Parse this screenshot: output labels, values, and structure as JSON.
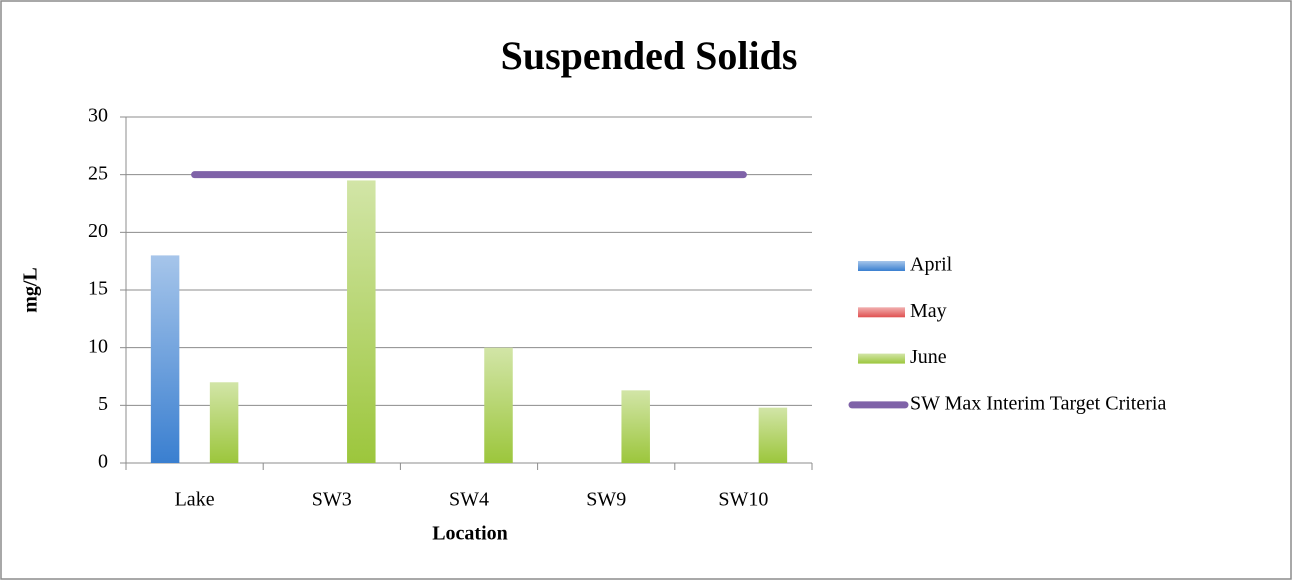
{
  "chart_data": {
    "type": "bar",
    "title": "Suspended Solids",
    "x_label": "Location",
    "y_label": "mg/L",
    "categories": [
      "Lake",
      "SW3",
      "SW4",
      "SW9",
      "SW10"
    ],
    "series": [
      {
        "name": "April",
        "color": "#3a7fd0",
        "values": [
          18,
          null,
          null,
          null,
          null
        ]
      },
      {
        "name": "May",
        "color": "#e05050",
        "values": [
          null,
          null,
          null,
          null,
          null
        ]
      },
      {
        "name": "June",
        "color": "#9cc63c",
        "values": [
          7,
          24.5,
          10,
          6.3,
          4.8
        ]
      },
      {
        "name": "SW Max Interim Target Criteria",
        "type": "line",
        "color": "#7f62a8",
        "values": [
          25,
          25,
          25,
          25,
          25
        ]
      }
    ],
    "ylim": [
      0,
      30
    ],
    "yticks": [
      0,
      5,
      10,
      15,
      20,
      25,
      30
    ],
    "grid": true,
    "legend": "right"
  }
}
